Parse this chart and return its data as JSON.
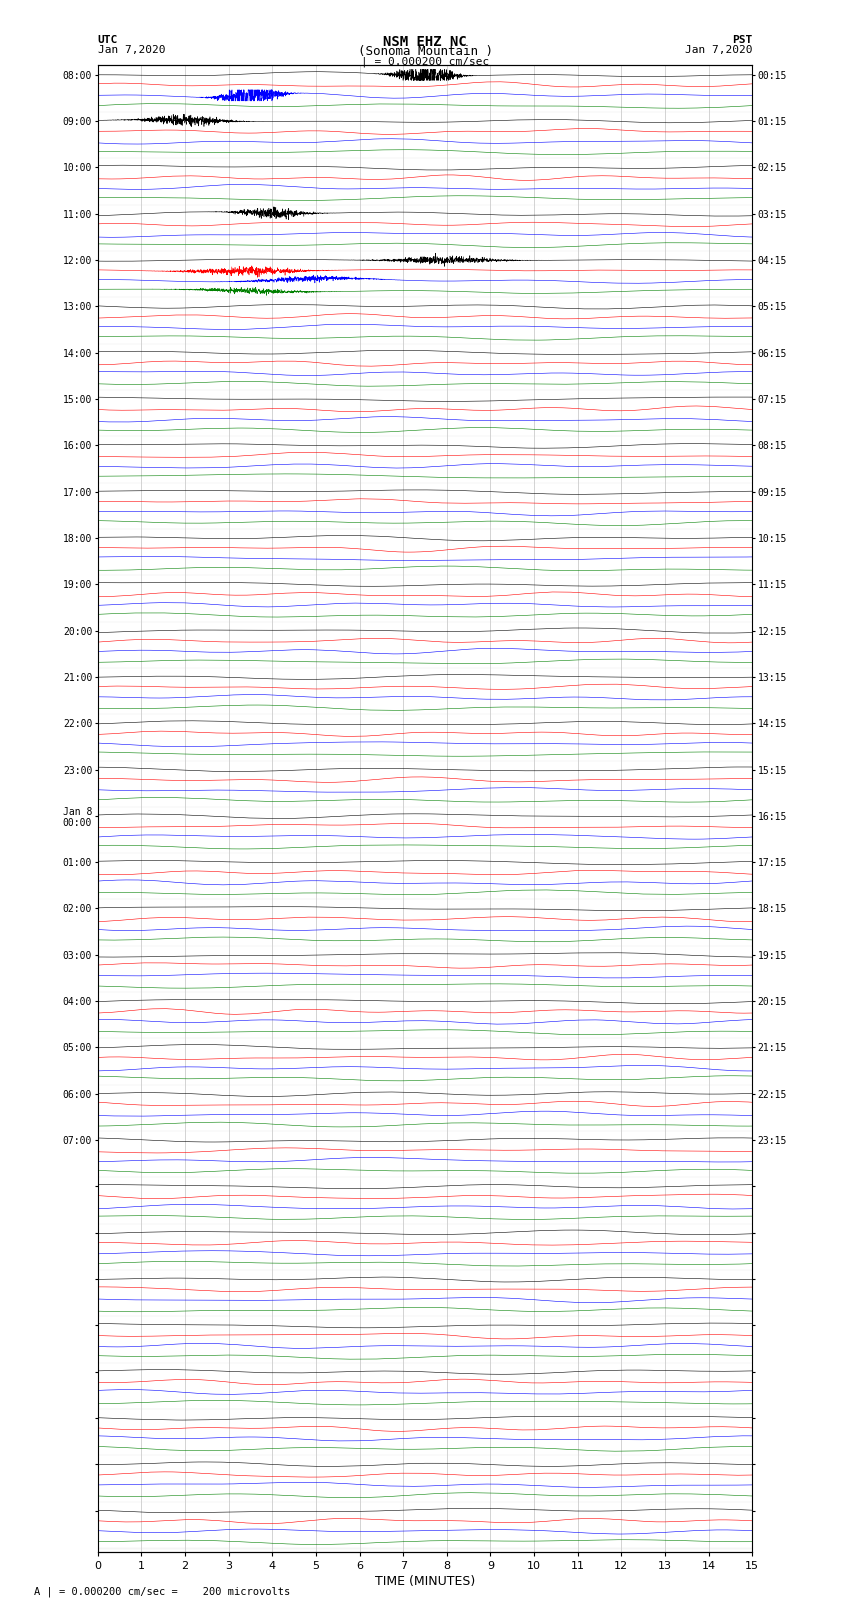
{
  "title_line1": "NSM EHZ NC",
  "title_line2": "(Sonoma Mountain )",
  "scale_label": "| = 0.000200 cm/sec",
  "utc_label": "UTC",
  "utc_date": "Jan 7,2020",
  "pst_label": "PST",
  "pst_date": "Jan 7,2020",
  "xlabel": "TIME (MINUTES)",
  "bottom_label": "A | = 0.000200 cm/sec =    200 microvolts",
  "xlabel_ticks": [
    0,
    1,
    2,
    3,
    4,
    5,
    6,
    7,
    8,
    9,
    10,
    11,
    12,
    13,
    14,
    15
  ],
  "colors": [
    "black",
    "red",
    "blue",
    "green"
  ],
  "bg_color": "white",
  "fig_width": 8.5,
  "fig_height": 16.13,
  "dpi": 100,
  "num_groups": 32,
  "traces_per_group": 4,
  "left_labels": [
    "08:00",
    "09:00",
    "10:00",
    "11:00",
    "12:00",
    "13:00",
    "14:00",
    "15:00",
    "16:00",
    "17:00",
    "18:00",
    "19:00",
    "20:00",
    "21:00",
    "22:00",
    "23:00",
    "Jan 8\n00:00",
    "01:00",
    "02:00",
    "03:00",
    "04:00",
    "05:00",
    "06:00",
    "07:00",
    "",
    "",
    "",
    "",
    "",
    "",
    "",
    "",
    "",
    ""
  ],
  "right_labels": [
    "00:15",
    "01:15",
    "02:15",
    "03:15",
    "04:15",
    "05:15",
    "06:15",
    "07:15",
    "08:15",
    "09:15",
    "10:15",
    "11:15",
    "12:15",
    "13:15",
    "14:15",
    "15:15",
    "16:15",
    "17:15",
    "18:15",
    "19:15",
    "20:15",
    "21:15",
    "22:15",
    "23:15",
    "",
    "",
    "",
    "",
    "",
    "",
    "",
    "",
    "",
    ""
  ]
}
